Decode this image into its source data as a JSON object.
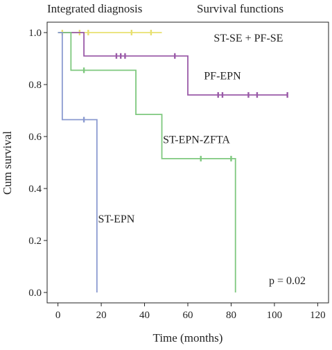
{
  "chart_data": {
    "type": "line",
    "step": true,
    "title_left": "Integrated diagnosis",
    "title_right": "Survival functions",
    "xlabel": "Time (months)",
    "ylabel": "Cum survival",
    "xlim": [
      -5,
      125
    ],
    "ylim": [
      -0.04,
      1.04
    ],
    "xticks": [
      0,
      20,
      40,
      60,
      80,
      100,
      120
    ],
    "yticks": [
      0.0,
      0.2,
      0.4,
      0.6,
      0.8,
      1.0
    ],
    "grid": false,
    "annotation": "p = 0.02",
    "series": [
      {
        "name": "ST-SE + PF-SE",
        "color": "#e8e070",
        "steps": [
          [
            0,
            1.0
          ],
          [
            48,
            1.0
          ]
        ],
        "censored": [
          [
            2,
            1.0
          ],
          [
            10,
            1.0
          ],
          [
            14,
            1.0
          ],
          [
            34,
            1.0
          ],
          [
            43,
            1.0
          ]
        ],
        "end_x": 48,
        "label_pos": [
          88,
          0.965
        ]
      },
      {
        "name": "PF-EPN",
        "color": "#9a5aa8",
        "steps": [
          [
            0,
            1.0
          ],
          [
            12,
            0.91
          ],
          [
            60,
            0.76
          ],
          [
            106,
            0.76
          ]
        ],
        "censored": [
          [
            27,
            0.91
          ],
          [
            29,
            0.91
          ],
          [
            31,
            0.91
          ],
          [
            54,
            0.91
          ],
          [
            74,
            0.76
          ],
          [
            76,
            0.76
          ],
          [
            88,
            0.76
          ],
          [
            92,
            0.76
          ],
          [
            106,
            0.76
          ]
        ],
        "end_x": 106,
        "label_pos": [
          76,
          0.82
        ]
      },
      {
        "name": "ST-EPN-ZFTA",
        "color": "#7ec87e",
        "steps": [
          [
            0,
            1.0
          ],
          [
            6,
            0.855
          ],
          [
            36,
            0.685
          ],
          [
            48,
            0.515
          ],
          [
            82,
            0.0
          ]
        ],
        "censored": [
          [
            12,
            0.855
          ],
          [
            66,
            0.515
          ],
          [
            80,
            0.515
          ]
        ],
        "end_x": 82,
        "label_pos": [
          64,
          0.575
        ]
      },
      {
        "name": "ST-EPN",
        "color": "#8a9ad0",
        "steps": [
          [
            0,
            1.0
          ],
          [
            2,
            0.665
          ],
          [
            18,
            0.0
          ]
        ],
        "censored": [
          [
            12,
            0.665
          ]
        ],
        "end_x": 18,
        "label_pos": [
          27,
          0.27
        ]
      }
    ]
  }
}
